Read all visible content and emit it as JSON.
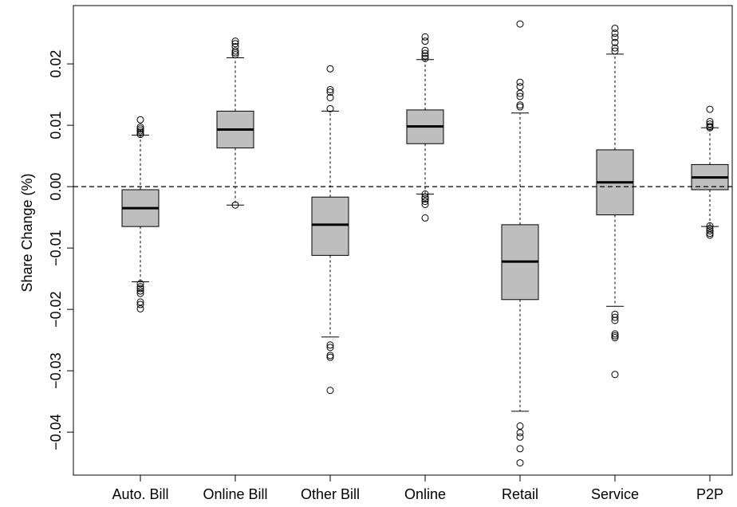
{
  "chart_data": {
    "type": "boxplot",
    "ylabel": "Share Change (%)",
    "ylim": [
      -0.047,
      0.0295
    ],
    "yticks": [
      -0.04,
      -0.03,
      -0.02,
      -0.01,
      0.0,
      0.01,
      0.02
    ],
    "ytick_labels": [
      "−0.04",
      "−0.03",
      "−0.02",
      "−0.01",
      "0.00",
      "0.01",
      "0.02"
    ],
    "reference_line": {
      "y": 0.0,
      "style": "dashed"
    },
    "categories": [
      "Auto. Bill",
      "Online Bill",
      "Other Bill",
      "Online",
      "Retail",
      "Service",
      "P2P"
    ],
    "boxes": [
      {
        "name": "Auto. Bill",
        "whisker_low": -0.0155,
        "q1": -0.0065,
        "median": -0.0035,
        "q3": -0.0005,
        "whisker_high": 0.0084,
        "outliers": [
          0.0109,
          0.0097,
          0.0094,
          0.0091,
          0.0088,
          0.0085,
          -0.0158,
          -0.0163,
          -0.0166,
          -0.017,
          -0.0174,
          -0.0188,
          -0.0192,
          -0.0199
        ]
      },
      {
        "name": "Online Bill",
        "whisker_low": -0.003,
        "q1": 0.0063,
        "median": 0.0093,
        "q3": 0.0123,
        "whisker_high": 0.021,
        "outliers": [
          0.0237,
          0.0233,
          0.0228,
          0.0221,
          0.0218,
          0.0215,
          -0.003
        ]
      },
      {
        "name": "Other Bill",
        "whisker_low": -0.0245,
        "q1": -0.0112,
        "median": -0.0062,
        "q3": -0.0017,
        "whisker_high": 0.0123,
        "outliers": [
          0.0192,
          0.0158,
          0.0154,
          0.0145,
          0.0127,
          -0.0258,
          -0.0262,
          -0.0275,
          -0.0278,
          -0.0332
        ]
      },
      {
        "name": "Online",
        "whisker_low": -0.0012,
        "q1": 0.007,
        "median": 0.0098,
        "q3": 0.0125,
        "whisker_high": 0.0207,
        "outliers": [
          0.0244,
          0.0237,
          0.0222,
          0.0217,
          0.0213,
          0.0209,
          -0.0012,
          -0.0017,
          -0.002,
          -0.0024,
          -0.0029,
          -0.0051
        ]
      },
      {
        "name": "Retail",
        "whisker_low": -0.0366,
        "q1": -0.0184,
        "median": -0.0122,
        "q3": -0.0062,
        "whisker_high": 0.012,
        "outliers": [
          0.0265,
          0.017,
          0.0163,
          0.0152,
          0.0147,
          0.0133,
          0.013,
          -0.039,
          -0.0401,
          -0.0408,
          -0.0427,
          -0.045
        ]
      },
      {
        "name": "Service",
        "whisker_low": -0.0195,
        "q1": -0.0046,
        "median": 0.0007,
        "q3": 0.006,
        "whisker_high": 0.0216,
        "outliers": [
          0.0258,
          0.025,
          0.0243,
          0.0235,
          0.0226,
          0.0221,
          -0.0208,
          -0.0213,
          -0.0218,
          -0.024,
          -0.0243,
          -0.0246,
          -0.0306
        ]
      },
      {
        "name": "P2P",
        "whisker_low": -0.0065,
        "q1": -0.0005,
        "median": 0.0015,
        "q3": 0.0036,
        "whisker_high": 0.0096,
        "outliers": [
          0.0126,
          0.0106,
          0.0102,
          0.0098,
          0.0096,
          -0.0064,
          -0.0068,
          -0.0072,
          -0.0076,
          -0.0079
        ]
      }
    ]
  }
}
